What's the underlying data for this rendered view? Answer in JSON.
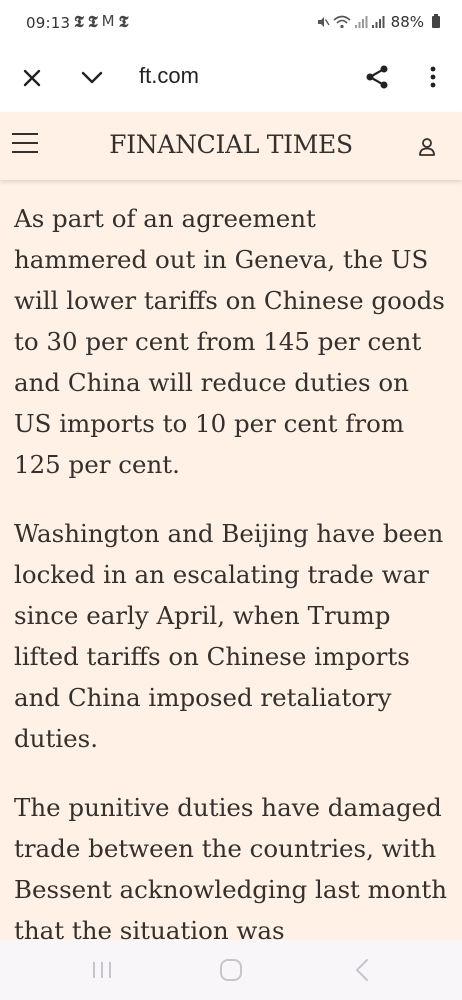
{
  "status_bar": {
    "time": "09:13",
    "notification_icons": [
      "𝕿",
      "𝕿",
      "M",
      "𝕿"
    ],
    "battery_text": "88%"
  },
  "browser": {
    "url": "ft.com",
    "icons": {
      "close": "close-icon",
      "minimize": "chevron-down-icon",
      "share": "share-icon",
      "more": "more-vertical-icon"
    }
  },
  "header": {
    "logo_text": "FINANCIAL TIMES",
    "icons": {
      "menu": "hamburger-menu-icon",
      "account": "account-icon"
    }
  },
  "article": {
    "paragraphs": [
      "As part of an agreement hammered out in Geneva, the US will lower tariffs on Chinese goods to 30 per cent from 145 per cent and China will reduce duties on US imports to 10 per cent from 125 per cent.",
      "Washington and Beijing have been locked in an escalating trade war since early April, when Trump lifted tariffs on Chinese imports and China imposed retaliatory duties.",
      "The punitive duties have damaged trade between the countries, with Bessent acknowledging last month that the situation was unsustainable."
    ]
  },
  "colors": {
    "ft_background": "#fff1e5",
    "text": "#33302e"
  }
}
